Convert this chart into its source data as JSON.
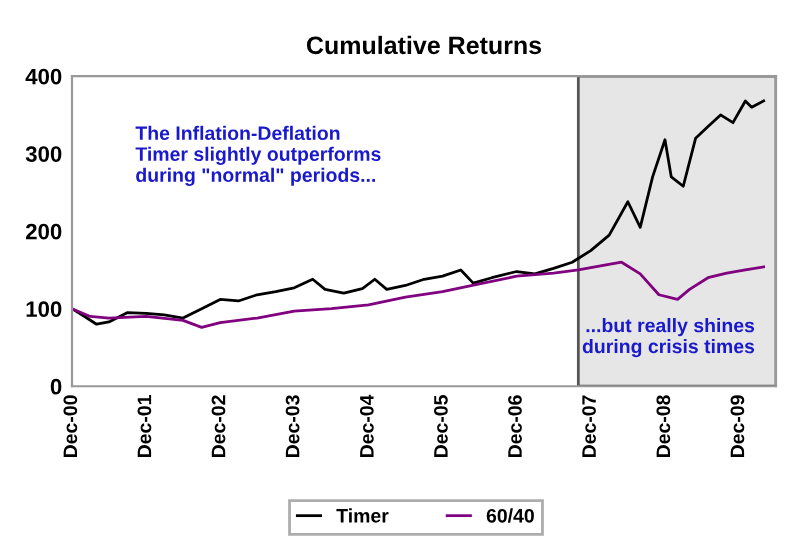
{
  "chart_data": {
    "type": "line",
    "title": "Cumulative Returns",
    "annotations": [
      "The Inflation-Deflation\nTimer slightly outperforms\nduring \"normal\" periods...",
      "...but really shines\nduring crisis times"
    ],
    "series": [
      {
        "name": "Timer",
        "color": "#000000",
        "x": [
          "2000-12",
          "2001-02",
          "2001-04",
          "2001-06",
          "2001-09",
          "2001-12",
          "2002-03",
          "2002-06",
          "2002-09",
          "2002-12",
          "2003-03",
          "2003-06",
          "2003-09",
          "2003-12",
          "2004-03",
          "2004-05",
          "2004-08",
          "2004-11",
          "2005-01",
          "2005-03",
          "2005-06",
          "2005-09",
          "2005-12",
          "2006-03",
          "2006-05",
          "2006-08",
          "2006-12",
          "2007-03",
          "2007-06",
          "2007-09",
          "2007-12",
          "2008-03",
          "2008-06",
          "2008-08",
          "2008-10",
          "2008-12",
          "2009-01",
          "2009-03",
          "2009-05",
          "2009-07",
          "2009-09",
          "2009-11",
          "2010-01",
          "2010-02",
          "2010-04"
        ],
        "values": [
          100,
          90,
          80,
          83,
          95,
          94,
          92,
          88,
          100,
          112,
          110,
          118,
          122,
          127,
          138,
          125,
          120,
          126,
          138,
          125,
          130,
          138,
          142,
          150,
          133,
          140,
          148,
          145,
          152,
          160,
          175,
          195,
          238,
          205,
          270,
          318,
          270,
          258,
          320,
          335,
          350,
          340,
          368,
          360,
          368
        ]
      },
      {
        "name": "60/40",
        "color": "#800080",
        "x": [
          "2000-12",
          "2001-03",
          "2001-06",
          "2001-12",
          "2002-06",
          "2002-09",
          "2002-12",
          "2003-06",
          "2003-12",
          "2004-06",
          "2004-12",
          "2005-06",
          "2005-12",
          "2006-06",
          "2006-12",
          "2007-06",
          "2007-10",
          "2008-02",
          "2008-05",
          "2008-08",
          "2008-11",
          "2009-02",
          "2009-04",
          "2009-07",
          "2009-10",
          "2010-01",
          "2010-04"
        ],
        "values": [
          100,
          90,
          88,
          90,
          85,
          76,
          82,
          88,
          97,
          100,
          105,
          115,
          122,
          132,
          142,
          146,
          150,
          156,
          160,
          145,
          118,
          112,
          125,
          140,
          146,
          150,
          154
        ]
      }
    ],
    "bands": [
      {
        "axis": "x",
        "from": "2007-10",
        "to": "2010-06",
        "color": "#e6e6e6"
      }
    ],
    "xlim": [
      "2000-12",
      "2010-06"
    ],
    "xticks": [
      {
        "value": "2000-12",
        "label": "Dec-00"
      },
      {
        "value": "2001-12",
        "label": "Dec-01"
      },
      {
        "value": "2002-12",
        "label": "Dec-02"
      },
      {
        "value": "2003-12",
        "label": "Dec-03"
      },
      {
        "value": "2004-12",
        "label": "Dec-04"
      },
      {
        "value": "2005-12",
        "label": "Dec-05"
      },
      {
        "value": "2006-12",
        "label": "Dec-06"
      },
      {
        "value": "2007-12",
        "label": "Dec-07"
      },
      {
        "value": "2008-12",
        "label": "Dec-08"
      },
      {
        "value": "2009-12",
        "label": "Dec-09"
      }
    ],
    "ylim": [
      0,
      400
    ],
    "yticks": [
      0,
      100,
      200,
      300,
      400
    ],
    "legend": "bottom",
    "grid": false
  }
}
